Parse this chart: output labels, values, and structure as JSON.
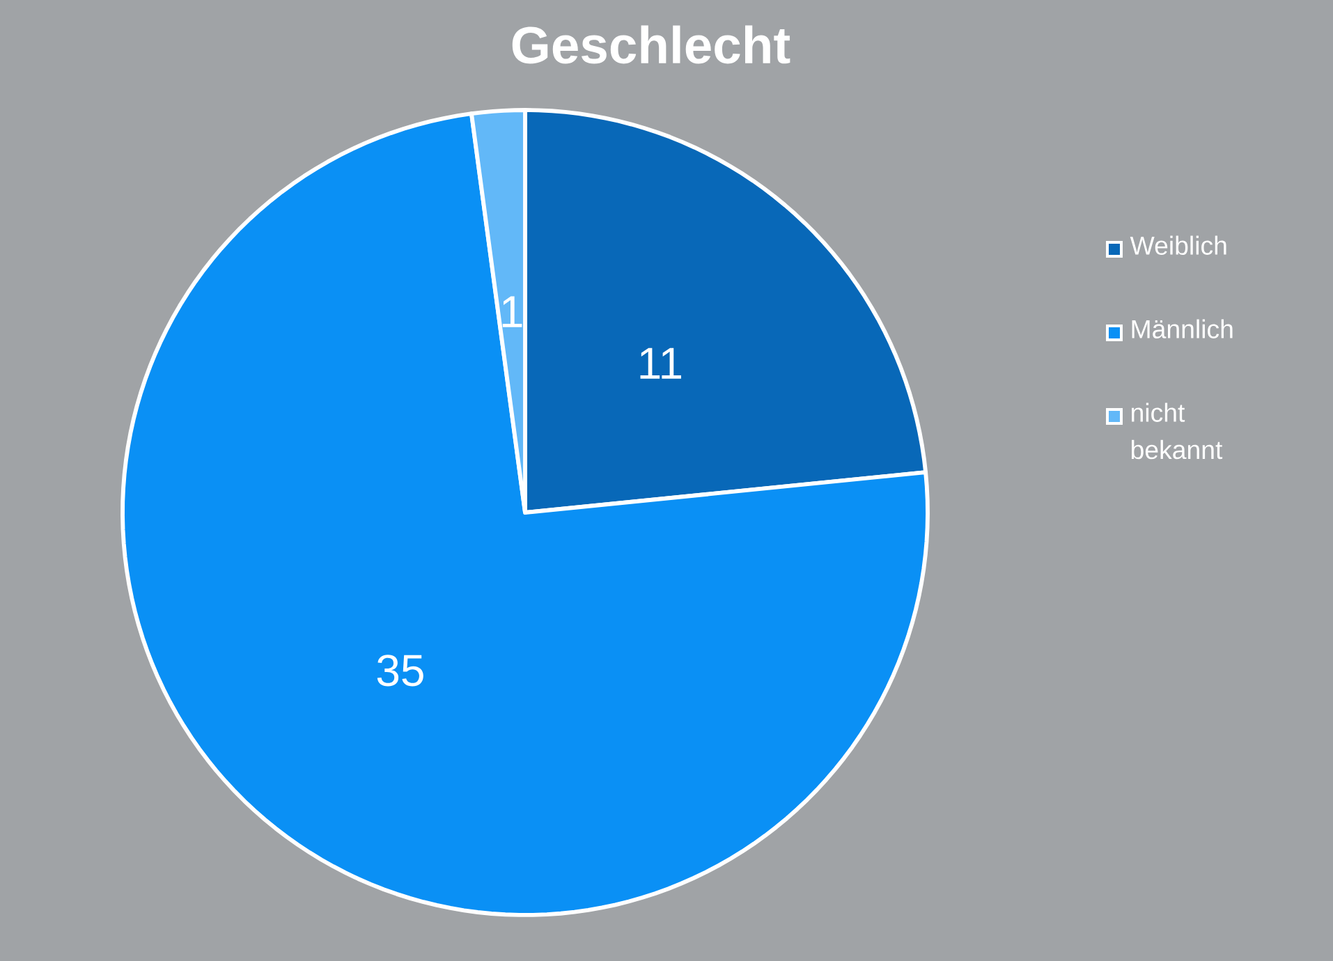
{
  "chart_data": {
    "type": "pie",
    "title": "Geschlecht",
    "categories": [
      "Weiblich",
      "Männlich",
      "nicht bekannt"
    ],
    "values": [
      11,
      35,
      1
    ],
    "colors": [
      "#0868b8",
      "#0a90f5",
      "#62b8f8"
    ],
    "data_labels": true,
    "legend": "right"
  }
}
